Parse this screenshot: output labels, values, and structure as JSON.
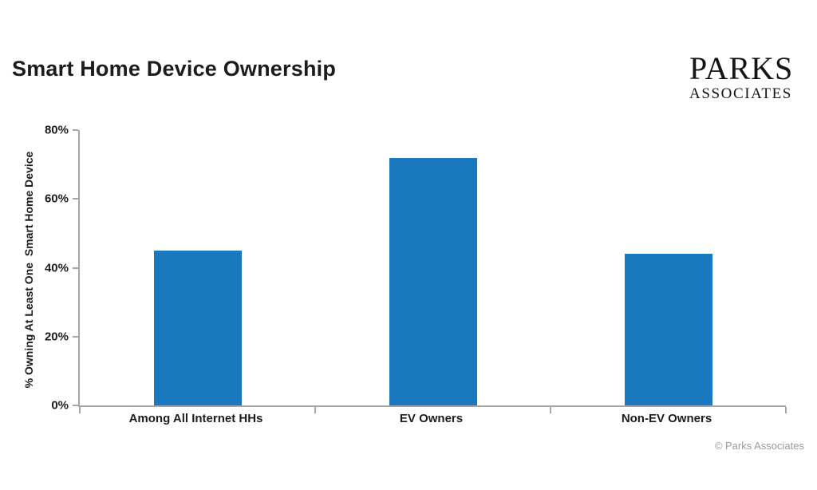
{
  "header": {
    "title": "Smart Home Device Ownership",
    "logo": {
      "line1": "PARKS",
      "line2": "ASSOCIATES"
    }
  },
  "chart_data": {
    "type": "bar",
    "categories": [
      "Among All Internet HHs",
      "EV Owners",
      "Non-EV Owners"
    ],
    "values": [
      45,
      72,
      44
    ],
    "title": "Smart Home Device Ownership",
    "xlabel": "",
    "ylabel": "% Owning At Least One  Smart Home Device",
    "ylim": [
      0,
      80
    ],
    "yticks": [
      0,
      20,
      40,
      60,
      80
    ],
    "ytick_suffix": "%",
    "grid": false,
    "legend": false,
    "bar_color": "#1a78be",
    "axis_color": "#a6a6a6"
  },
  "footer": {
    "copyright": "© Parks Associates"
  }
}
